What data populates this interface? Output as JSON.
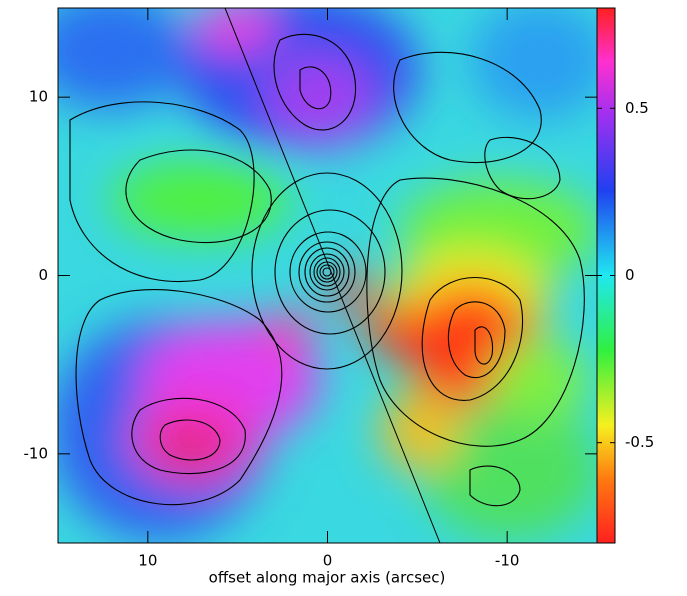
{
  "chart_data": {
    "type": "image",
    "xlabel": "offset along major axis (arcsec)",
    "xlim": [
      15,
      -15
    ],
    "ylim": [
      -15,
      15
    ],
    "xticks": [
      10,
      0,
      -10
    ],
    "yticks": [
      10,
      0,
      -10
    ],
    "colorbar": {
      "lim": [
        -0.8,
        0.8
      ],
      "ticks": [
        0.5,
        0,
        -0.5
      ]
    }
  }
}
